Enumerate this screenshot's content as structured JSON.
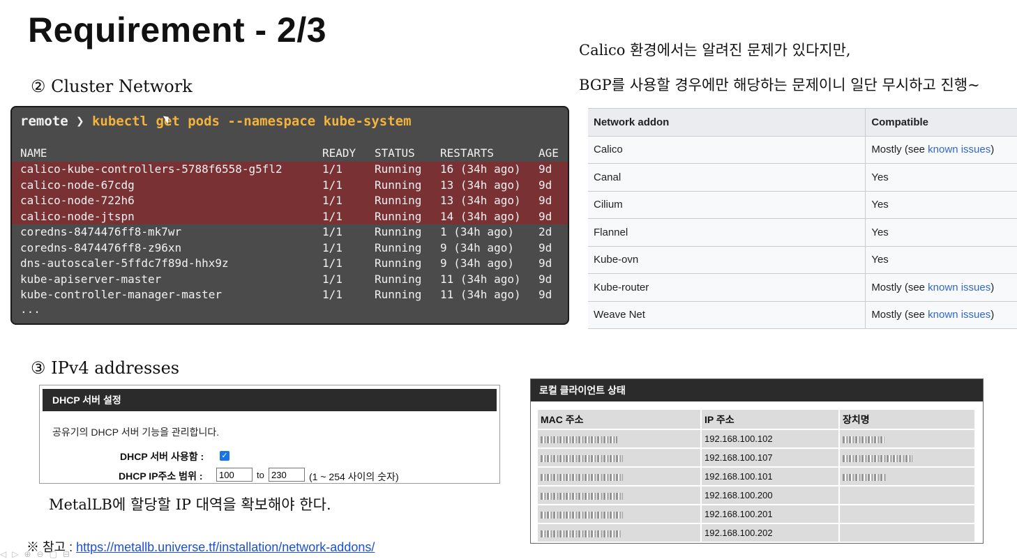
{
  "slide": {
    "title": "Requirement - 2/3",
    "cluster_heading": "② Cluster Network",
    "ipv4_heading": "③ IPv4 addresses",
    "note_line1": "Calico 환경에서는 알려진 문제가 있다지만,",
    "note_line2": "BGP를 사용할 경우에만 해당하는 문제이니 일단 무시하고 진행~",
    "metallb_note": "MetalLB에 할당할 IP 대역을 확보해야 한다.",
    "ref_prefix": "※ 참고 : ",
    "ref_link": "https://metallb.universe.tf/installation/network-addons/"
  },
  "terminal": {
    "prompt": "remote ❯ ",
    "command": "kubectl get pods --namespace kube-system",
    "headers": {
      "name": "NAME",
      "ready": "READY",
      "status": "STATUS",
      "restarts": "RESTARTS",
      "age": "AGE"
    },
    "rows": [
      {
        "name": "calico-kube-controllers-5788f6558-g5fl2",
        "ready": "1/1",
        "status": "Running",
        "restarts": "16 (34h ago)",
        "age": "9d",
        "highlight": true
      },
      {
        "name": "calico-node-67cdg",
        "ready": "1/1",
        "status": "Running",
        "restarts": "13 (34h ago)",
        "age": "9d",
        "highlight": true
      },
      {
        "name": "calico-node-722h6",
        "ready": "1/1",
        "status": "Running",
        "restarts": "13 (34h ago)",
        "age": "9d",
        "highlight": true
      },
      {
        "name": "calico-node-jtspn",
        "ready": "1/1",
        "status": "Running",
        "restarts": "14 (34h ago)",
        "age": "9d",
        "highlight": true
      },
      {
        "name": "coredns-8474476ff8-mk7wr",
        "ready": "1/1",
        "status": "Running",
        "restarts": "1 (34h ago)",
        "age": "2d",
        "highlight": false
      },
      {
        "name": "coredns-8474476ff8-z96xn",
        "ready": "1/1",
        "status": "Running",
        "restarts": "9 (34h ago)",
        "age": "9d",
        "highlight": false
      },
      {
        "name": "dns-autoscaler-5ffdc7f89d-hhx9z",
        "ready": "1/1",
        "status": "Running",
        "restarts": "9 (34h ago)",
        "age": "9d",
        "highlight": false
      },
      {
        "name": "kube-apiserver-master",
        "ready": "1/1",
        "status": "Running",
        "restarts": "11 (34h ago)",
        "age": "9d",
        "highlight": false
      },
      {
        "name": "kube-controller-manager-master",
        "ready": "1/1",
        "status": "Running",
        "restarts": "11 (34h ago)",
        "age": "9d",
        "highlight": false
      }
    ],
    "ellipsis": "...",
    "highlight_color": "#7a3134",
    "command_color": "#f3b33d"
  },
  "addons": {
    "headers": {
      "addon": "Network addon",
      "compatible": "Compatible"
    },
    "rows": [
      {
        "addon": "Calico",
        "compatible": "Mostly (see ",
        "link": "known issues",
        "suffix": ")"
      },
      {
        "addon": "Canal",
        "compatible": "Yes",
        "link": "",
        "suffix": ""
      },
      {
        "addon": "Cilium",
        "compatible": "Yes",
        "link": "",
        "suffix": ""
      },
      {
        "addon": "Flannel",
        "compatible": "Yes",
        "link": "",
        "suffix": ""
      },
      {
        "addon": "Kube-ovn",
        "compatible": "Yes",
        "link": "",
        "suffix": ""
      },
      {
        "addon": "Kube-router",
        "compatible": "Mostly (see ",
        "link": "known issues",
        "suffix": ")"
      },
      {
        "addon": "Weave Net",
        "compatible": "Mostly (see ",
        "link": "known issues",
        "suffix": ")"
      }
    ]
  },
  "dhcp": {
    "header": "DHCP 서버 설정",
    "description": "공유기의 DHCP 서버 기능을 관리합니다.",
    "enable_label": "DHCP 서버 사용함 :",
    "enable_checked": "✓",
    "range_label": "DHCP IP주소 범위 :",
    "range_start": "100",
    "range_to": "to",
    "range_end": "230",
    "range_hint": "(1 ~ 254 사이의 숫자)"
  },
  "clients": {
    "header": "로컬 클라이언트 상태",
    "headers": {
      "mac": "MAC 주소",
      "ip": "IP 주소",
      "device": "장치명"
    },
    "rows": [
      {
        "ip": "192.168.100.102"
      },
      {
        "ip": "192.168.100.107"
      },
      {
        "ip": "192.168.100.101"
      },
      {
        "ip": "192.168.100.200"
      },
      {
        "ip": "192.168.100.201"
      },
      {
        "ip": "192.168.100.202"
      }
    ]
  }
}
